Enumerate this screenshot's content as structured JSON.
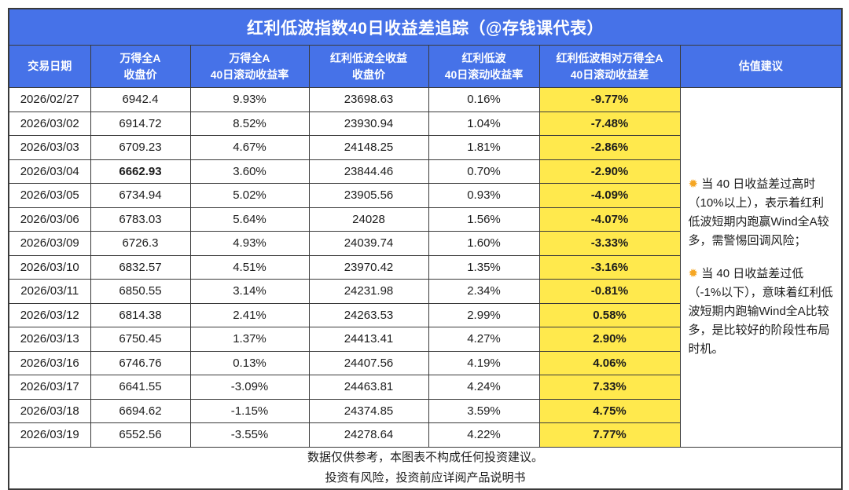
{
  "title": "红利低波指数40日收益差追踪（@存钱课代表）",
  "colors": {
    "header_blue": "#4672E8",
    "highlight_yellow": "#FFE94D",
    "border": "#3a3a3a"
  },
  "chart_data": {
    "type": "table",
    "title": "红利低波指数40日收益差追踪（@存钱课代表）",
    "columns": [
      {
        "line1": "交易日期",
        "line2": ""
      },
      {
        "line1": "万得全A",
        "line2": "收盘价"
      },
      {
        "line1": "万得全A",
        "line2": "40日滚动收益率"
      },
      {
        "line1": "红利低波全收益",
        "line2": "收盘价"
      },
      {
        "line1": "红利低波",
        "line2": "40日滚动收益率"
      },
      {
        "line1": "红利低波相对万得全A",
        "line2": "40日滚动收益差"
      },
      {
        "line1": "估值建议",
        "line2": ""
      }
    ],
    "rows": [
      [
        "2026/02/27",
        "6942.4",
        "9.93%",
        "23698.63",
        "0.16%",
        "-9.77%"
      ],
      [
        "2026/03/02",
        "6914.72",
        "8.52%",
        "23930.94",
        "1.04%",
        "-7.48%"
      ],
      [
        "2026/03/03",
        "6709.23",
        "4.67%",
        "24148.25",
        "1.81%",
        "-2.86%"
      ],
      [
        "2026/03/04",
        "6662.93",
        "3.60%",
        "23844.46",
        "0.70%",
        "-2.90%"
      ],
      [
        "2026/03/05",
        "6734.94",
        "5.02%",
        "23905.56",
        "0.93%",
        "-4.09%"
      ],
      [
        "2026/03/06",
        "6783.03",
        "5.64%",
        "24028",
        "1.56%",
        "-4.07%"
      ],
      [
        "2026/03/09",
        "6726.3",
        "4.93%",
        "24039.74",
        "1.60%",
        "-3.33%"
      ],
      [
        "2026/03/10",
        "6832.57",
        "4.51%",
        "23970.42",
        "1.35%",
        "-3.16%"
      ],
      [
        "2026/03/11",
        "6850.55",
        "3.14%",
        "24231.98",
        "2.34%",
        "-0.81%"
      ],
      [
        "2026/03/12",
        "6814.38",
        "2.41%",
        "24263.53",
        "2.99%",
        "0.58%"
      ],
      [
        "2026/03/13",
        "6750.45",
        "1.37%",
        "24413.41",
        "4.27%",
        "2.90%"
      ],
      [
        "2026/03/16",
        "6746.76",
        "0.13%",
        "24407.56",
        "4.19%",
        "4.06%"
      ],
      [
        "2026/03/17",
        "6641.55",
        "-3.09%",
        "24463.81",
        "4.24%",
        "7.33%"
      ],
      [
        "2026/03/18",
        "6694.62",
        "-1.15%",
        "24374.85",
        "3.59%",
        "4.75%"
      ],
      [
        "2026/03/19",
        "6552.56",
        "-3.55%",
        "24278.64",
        "4.22%",
        "7.77%"
      ]
    ],
    "emphasis_cell": {
      "row_index": 3,
      "col_index": 1
    }
  },
  "advice": {
    "paragraphs": [
      {
        "icon": "✹",
        "text": "当 40 日收益差过高时（10%以上），表示着红利低波短期内跑赢Wind全A较多，需警惕回调风险；"
      },
      {
        "icon": "✹",
        "text": "当 40 日收益差过低（-1%以下），意味着红利低波短期内跑输Wind全A比较多，是比较好的阶段性布局时机。"
      }
    ]
  },
  "footer": {
    "line1": "数据仅供参考，本图表不构成任何投资建议。",
    "line2": "投资有风险，投资前应详阅产品说明书"
  }
}
